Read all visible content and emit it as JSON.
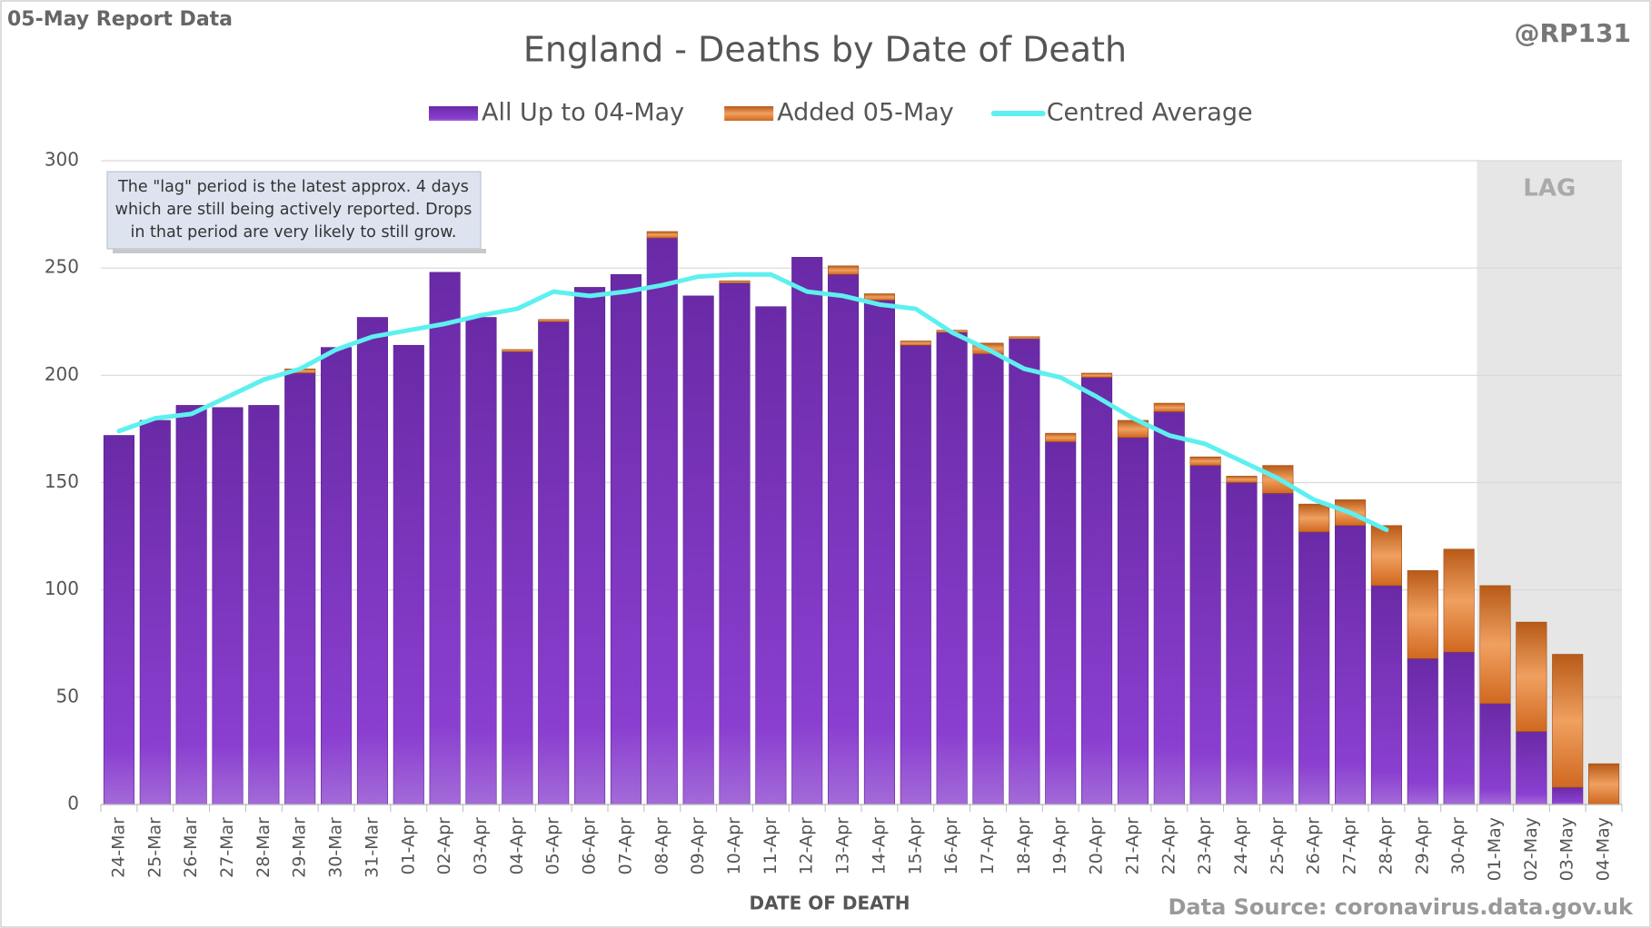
{
  "chart_data": {
    "type": "bar",
    "report_label": "05-May Report Data",
    "handle": "@RP131",
    "title": "England - Deaths by Date of Death",
    "x_label": "DATE OF DEATH",
    "source": "Data Source: coronavirus.data.gov.uk",
    "annotation": [
      "The \"lag\" period is the latest approx. 4 days",
      "which are still being actively reported.  Drops",
      "in that period are very likely to still grow."
    ],
    "lag_label": "LAG",
    "lag_from": "01-May",
    "categories": [
      "24-Mar",
      "25-Mar",
      "26-Mar",
      "27-Mar",
      "28-Mar",
      "29-Mar",
      "30-Mar",
      "31-Mar",
      "01-Apr",
      "02-Apr",
      "03-Apr",
      "04-Apr",
      "05-Apr",
      "06-Apr",
      "07-Apr",
      "08-Apr",
      "09-Apr",
      "10-Apr",
      "11-Apr",
      "12-Apr",
      "13-Apr",
      "14-Apr",
      "15-Apr",
      "16-Apr",
      "17-Apr",
      "18-Apr",
      "19-Apr",
      "20-Apr",
      "21-Apr",
      "22-Apr",
      "23-Apr",
      "24-Apr",
      "25-Apr",
      "26-Apr",
      "27-Apr",
      "28-Apr",
      "29-Apr",
      "30-Apr",
      "01-May",
      "02-May",
      "03-May",
      "04-May"
    ],
    "series": [
      {
        "name": "All Up to 04-May",
        "color": "#7a35b8",
        "stack": true,
        "values": [
          172,
          179,
          186,
          185,
          186,
          201,
          213,
          227,
          214,
          248,
          227,
          211,
          225,
          241,
          247,
          264,
          237,
          243,
          232,
          255,
          247,
          235,
          214,
          220,
          210,
          217,
          169,
          199,
          171,
          183,
          158,
          150,
          145,
          127,
          130,
          102,
          68,
          71,
          47,
          34,
          8,
          0
        ]
      },
      {
        "name": "Added 05-May",
        "color": "#e07a2a",
        "stack": true,
        "values": [
          0,
          0,
          0,
          0,
          0,
          2,
          0,
          0,
          0,
          0,
          0,
          1,
          1,
          0,
          0,
          3,
          0,
          1,
          0,
          0,
          4,
          3,
          2,
          1,
          5,
          1,
          4,
          2,
          8,
          4,
          4,
          3,
          13,
          13,
          12,
          28,
          41,
          48,
          55,
          51,
          62,
          19
        ]
      },
      {
        "name": "Centred Average",
        "color": "#5ef0f0",
        "line": true,
        "values": [
          174,
          180,
          182,
          190,
          198,
          203,
          212,
          218,
          221,
          224,
          228,
          231,
          239,
          237,
          239,
          242,
          246,
          247,
          247,
          239,
          237,
          233,
          231,
          220,
          212,
          203,
          199,
          190,
          180,
          172,
          168,
          160,
          152,
          142,
          136,
          128,
          null,
          null,
          null,
          null,
          null,
          null
        ]
      }
    ],
    "ylim": [
      0,
      300
    ],
    "yticks": [
      0,
      50,
      100,
      150,
      200,
      250,
      300
    ],
    "grid": true
  }
}
